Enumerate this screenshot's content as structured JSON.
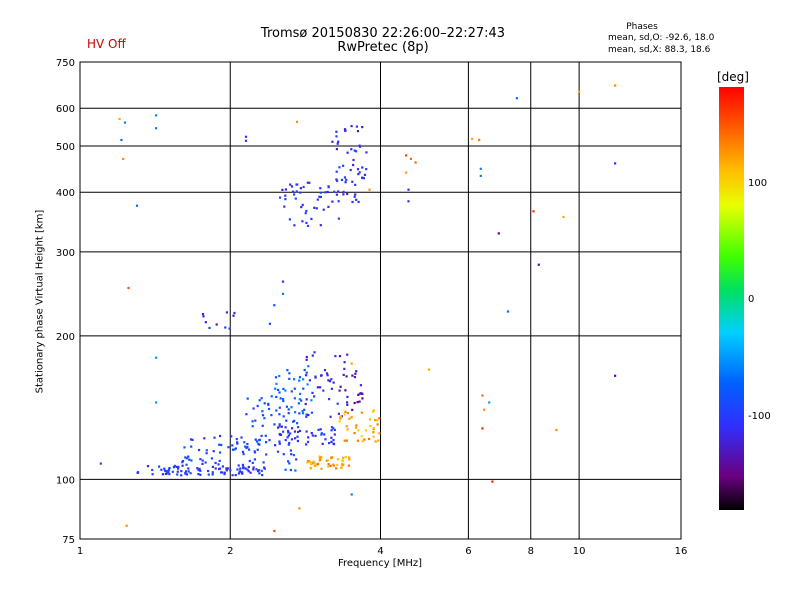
{
  "header": {
    "hv_status": "HV Off",
    "title_line1": "Tromsø 20150830 22:26:00–22:27:43",
    "title_line2": "RwPretec (8p)",
    "phases_title": "Phases",
    "phases_o": "mean, sd,O: -92.6, 18.0",
    "phases_x": "mean, sd,X:  88.3, 18.6"
  },
  "colorbar": {
    "unit": "[deg]",
    "ticks": [
      "100",
      "0",
      "-100"
    ],
    "tick_values": [
      100,
      0,
      -100
    ],
    "range": [
      -180,
      180
    ]
  },
  "chart_data": {
    "type": "scatter",
    "title": "Tromsø 20150830 22:26:00–22:27:43",
    "subtitle": "RwPretec (8p)",
    "xlabel": "Frequency [MHz]",
    "ylabel": "Stationary phase Virtual Height [km]",
    "x_scale": "log",
    "y_scale": "log",
    "xlim": [
      1,
      16
    ],
    "ylim": [
      75,
      750
    ],
    "x_ticks": [
      1,
      2,
      4,
      6,
      8,
      10,
      16
    ],
    "x_tick_labels": [
      "1",
      "2",
      "4",
      "6",
      "8",
      "10",
      "16"
    ],
    "y_ticks": [
      75,
      100,
      200,
      300,
      400,
      500,
      600,
      750
    ],
    "y_tick_labels": [
      "75",
      "100",
      "200",
      "300",
      "400",
      "500",
      "600",
      "750"
    ],
    "x_gridlines": [
      2,
      4,
      6,
      8,
      10
    ],
    "y_gridlines": [
      100,
      200,
      300,
      400,
      500,
      600
    ],
    "grid": true,
    "color_scale": "phase [deg]",
    "clusters": [
      {
        "x_range": [
          1.3,
          2.35
        ],
        "y_range": [
          102,
          107
        ],
        "phase": -105,
        "count": 90
      },
      {
        "x_range": [
          1.6,
          2.3
        ],
        "y_range": [
          107,
          125
        ],
        "phase": -95,
        "count": 55
      },
      {
        "x_range": [
          2.15,
          2.75
        ],
        "y_range": [
          104,
          150
        ],
        "phase": -90,
        "count": 60
      },
      {
        "x_range": [
          2.45,
          3.3
        ],
        "y_range": [
          118,
          130
        ],
        "phase": -110,
        "count": 45
      },
      {
        "x_range": [
          2.45,
          3.0
        ],
        "y_range": [
          130,
          175
        ],
        "phase": -75,
        "count": 45
      },
      {
        "x_range": [
          2.8,
          3.45
        ],
        "y_range": [
          135,
          185
        ],
        "phase": -120,
        "count": 40
      },
      {
        "x_range": [
          3.4,
          3.7
        ],
        "y_range": [
          138,
          170
        ],
        "phase": -130,
        "count": 18
      },
      {
        "x_range": [
          2.85,
          3.5
        ],
        "y_range": [
          105,
          112
        ],
        "phase": 120,
        "count": 45
      },
      {
        "x_range": [
          3.3,
          4.0
        ],
        "y_range": [
          120,
          140
        ],
        "phase": 120,
        "count": 40
      },
      {
        "x_range": [
          2.5,
          3.3
        ],
        "y_range": [
          340,
          420
        ],
        "phase": -105,
        "count": 45
      },
      {
        "x_range": [
          3.2,
          3.75
        ],
        "y_range": [
          380,
          560
        ],
        "phase": -110,
        "count": 55
      },
      {
        "x_range": [
          1.75,
          2.05
        ],
        "y_range": [
          205,
          225
        ],
        "phase": -110,
        "count": 10
      }
    ],
    "scattered_points": [
      {
        "x": 1.2,
        "y": 570,
        "phase": 120
      },
      {
        "x": 1.21,
        "y": 515,
        "phase": -70
      },
      {
        "x": 1.22,
        "y": 470,
        "phase": 130
      },
      {
        "x": 1.23,
        "y": 560,
        "phase": -60
      },
      {
        "x": 1.3,
        "y": 375,
        "phase": -70
      },
      {
        "x": 1.25,
        "y": 252,
        "phase": 150
      },
      {
        "x": 1.42,
        "y": 580,
        "phase": -60
      },
      {
        "x": 1.42,
        "y": 545,
        "phase": -60
      },
      {
        "x": 1.42,
        "y": 180,
        "phase": -50
      },
      {
        "x": 1.42,
        "y": 145,
        "phase": -50
      },
      {
        "x": 1.1,
        "y": 108,
        "phase": -90
      },
      {
        "x": 1.24,
        "y": 80,
        "phase": 130
      },
      {
        "x": 2.15,
        "y": 523,
        "phase": -110
      },
      {
        "x": 2.15,
        "y": 513,
        "phase": -110
      },
      {
        "x": 2.72,
        "y": 562,
        "phase": 130
      },
      {
        "x": 2.55,
        "y": 260,
        "phase": -110
      },
      {
        "x": 2.55,
        "y": 245,
        "phase": -60
      },
      {
        "x": 2.45,
        "y": 232,
        "phase": -80
      },
      {
        "x": 2.4,
        "y": 212,
        "phase": -90
      },
      {
        "x": 3.5,
        "y": 93,
        "phase": -60
      },
      {
        "x": 2.45,
        "y": 78,
        "phase": 150
      },
      {
        "x": 2.75,
        "y": 87,
        "phase": 130
      },
      {
        "x": 3.5,
        "y": 175,
        "phase": 120
      },
      {
        "x": 3.8,
        "y": 405,
        "phase": 130
      },
      {
        "x": 4.5,
        "y": 478,
        "phase": 155
      },
      {
        "x": 4.6,
        "y": 470,
        "phase": 140
      },
      {
        "x": 4.7,
        "y": 462,
        "phase": 145
      },
      {
        "x": 4.5,
        "y": 440,
        "phase": 125
      },
      {
        "x": 4.55,
        "y": 405,
        "phase": -110
      },
      {
        "x": 4.55,
        "y": 383,
        "phase": -100
      },
      {
        "x": 5.0,
        "y": 170,
        "phase": 120
      },
      {
        "x": 6.1,
        "y": 518,
        "phase": 120
      },
      {
        "x": 6.3,
        "y": 515,
        "phase": 135
      },
      {
        "x": 6.35,
        "y": 448,
        "phase": -60
      },
      {
        "x": 6.35,
        "y": 433,
        "phase": -60
      },
      {
        "x": 6.4,
        "y": 150,
        "phase": 140
      },
      {
        "x": 6.45,
        "y": 140,
        "phase": 130
      },
      {
        "x": 6.4,
        "y": 128,
        "phase": 165
      },
      {
        "x": 6.6,
        "y": 145,
        "phase": -50
      },
      {
        "x": 6.7,
        "y": 99,
        "phase": 170
      },
      {
        "x": 6.9,
        "y": 328,
        "phase": -150
      },
      {
        "x": 7.2,
        "y": 225,
        "phase": -70
      },
      {
        "x": 7.5,
        "y": 630,
        "phase": -70
      },
      {
        "x": 8.1,
        "y": 365,
        "phase": 165
      },
      {
        "x": 8.3,
        "y": 282,
        "phase": -140
      },
      {
        "x": 9.0,
        "y": 127,
        "phase": 130
      },
      {
        "x": 9.3,
        "y": 355,
        "phase": 120
      },
      {
        "x": 10.0,
        "y": 650,
        "phase": 120
      },
      {
        "x": 11.8,
        "y": 670,
        "phase": 130
      },
      {
        "x": 11.8,
        "y": 460,
        "phase": -110
      },
      {
        "x": 11.8,
        "y": 165,
        "phase": -140
      }
    ]
  }
}
